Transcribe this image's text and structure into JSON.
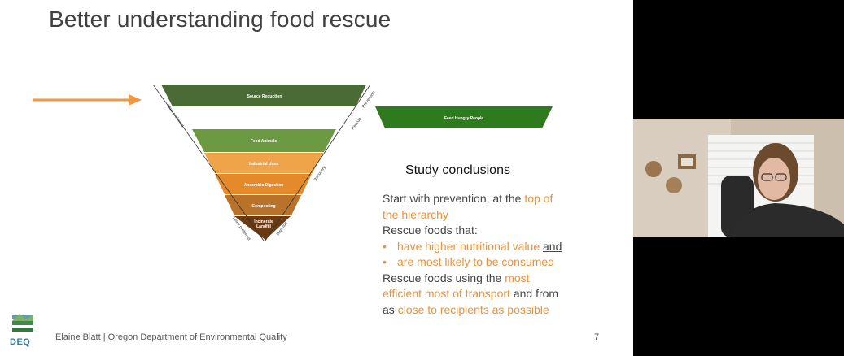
{
  "slide": {
    "title": "Better understanding food rescue",
    "hierarchy": {
      "source_reduction": "Source Reduction",
      "feed_hungry": "Feed Hungry People",
      "feed_animals": "Feed Animals",
      "industrial": "Industrial Uses",
      "anaerobic": "Anaerobic Digestion",
      "composting": "Composting",
      "incinerate_1": "Incinerate",
      "incinerate_2": "Landfill",
      "side_most": "Most preferred",
      "side_least": "Least preferred",
      "side_prevention": "Prevention",
      "side_rescue": "Rescue",
      "side_recovery": "Recovery",
      "side_disposal": "Disposal"
    },
    "conclusions_title": "Study conclusions",
    "conclusions": {
      "l1a": "Start with prevention, at the ",
      "l1b": "top of",
      "l2": "the hierarchy",
      "l3": "Rescue foods that:",
      "bullet": "•",
      "l4a": "have higher nutritional value",
      "l4b": "and",
      "l5": "are most likely to be consumed",
      "l6a": "Rescue foods using the ",
      "l6b": "most",
      "l7a": "efficient most of transport",
      "l7b": " and from",
      "l8a": "as ",
      "l8b": "close to recipients as possible"
    },
    "footer": "Elaine Blatt | Oregon Department of Environmental Quality",
    "page_number": "7",
    "logo_text": "DEQ"
  },
  "colors": {
    "accent_orange": "#e8923c",
    "dark_green": "#4a6b35",
    "bright_green": "#2f7a1f",
    "mid_green": "#6b9a42",
    "light_orange": "#f0a44a",
    "orange": "#e48a2b",
    "brown_orange": "#c47a2a",
    "brown": "#9a5a1c",
    "dark_brown": "#6a3b12"
  }
}
